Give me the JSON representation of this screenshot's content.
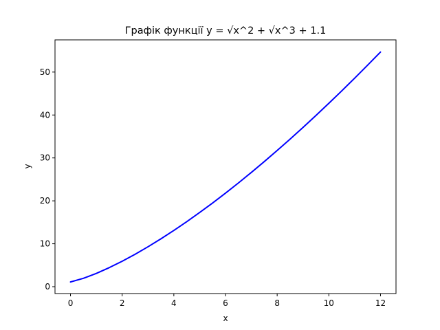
{
  "chart_data": {
    "type": "line",
    "title": "Графік функції y = √x^2 + √x^3 + 1.1",
    "xlabel": "x",
    "ylabel": "y",
    "xlim": [
      -0.6,
      12.6
    ],
    "ylim": [
      -1.6,
      57.5
    ],
    "xticks": [
      0,
      2,
      4,
      6,
      8,
      10,
      12
    ],
    "yticks": [
      0,
      10,
      20,
      30,
      40,
      50
    ],
    "grid": false,
    "legend": "none",
    "series": [
      {
        "color": "#0000ff",
        "x": [
          0,
          0.5,
          1,
          1.5,
          2,
          2.5,
          3,
          3.5,
          4,
          4.5,
          5,
          5.5,
          6,
          6.5,
          7,
          7.5,
          8,
          8.5,
          9,
          9.5,
          10,
          10.5,
          11,
          11.5,
          12
        ],
        "y": [
          1.1,
          1.95,
          3.1,
          4.44,
          5.93,
          7.55,
          9.3,
          11.15,
          13.1,
          15.15,
          17.28,
          19.5,
          21.8,
          24.17,
          26.62,
          29.14,
          31.73,
          34.38,
          37.1,
          39.88,
          42.72,
          45.62,
          48.58,
          51.6,
          54.67
        ]
      }
    ]
  }
}
